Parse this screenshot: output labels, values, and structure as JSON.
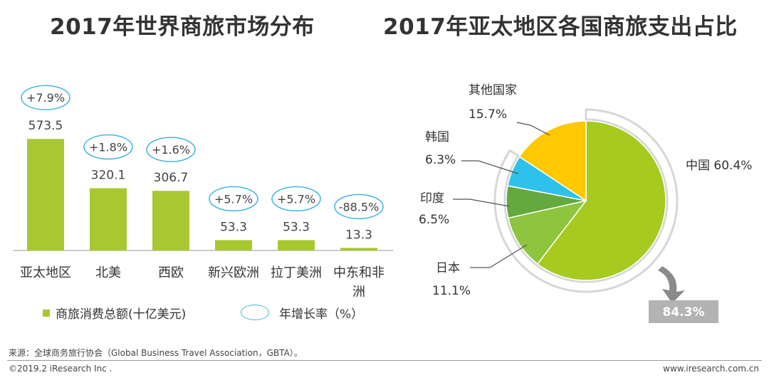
{
  "chart_data": [
    {
      "type": "bar",
      "title": "2017年世界商旅市场分布",
      "categories": [
        "亚太地区",
        "北美",
        "西欧",
        "新兴欧洲",
        "拉丁美洲",
        "中东和非洲"
      ],
      "values": [
        573.5,
        320.1,
        306.7,
        53.3,
        53.3,
        13.3
      ],
      "value_labels": [
        "573.5",
        "320.1",
        "306.7",
        "53.3",
        "53.3",
        "13.3"
      ],
      "growth_labels": [
        "+7.9%",
        "+1.8%",
        "+1.6%",
        "+5.7%",
        "+5.7%",
        "-88.5%"
      ],
      "ylim": [
        0,
        600
      ],
      "legend": {
        "bar_label": "商旅消费总额(十亿美元)",
        "growth_label": "年增长率（%）"
      },
      "colors": {
        "bar": "#a8c832",
        "growth_ring": "#3fb6e0"
      }
    },
    {
      "type": "pie",
      "title": "2017年亚太地区各国商旅支出占比",
      "slices": [
        {
          "name": "中国",
          "value": 60.4,
          "label": "中国 60.4%",
          "color": "#a6ca1e"
        },
        {
          "name": "日本",
          "value": 11.1,
          "label": "11.1%",
          "color": "#8fc43e"
        },
        {
          "name": "印度",
          "value": 6.5,
          "label": "6.5%",
          "color": "#63a93e"
        },
        {
          "name": "韩国",
          "value": 6.3,
          "label": "6.3%",
          "color": "#2ec1ec"
        },
        {
          "name": "其他国家",
          "value": 15.7,
          "label": "15.7%",
          "color": "#ffc800"
        }
      ],
      "highlight_total": "84.3%"
    }
  ],
  "source": "来源：全球商务旅行协会（Global Business Travel Association，GBTA）。",
  "footer": {
    "copyright": "©2019.2 iResearch Inc .",
    "website": "www.iresearch.com.cn"
  }
}
